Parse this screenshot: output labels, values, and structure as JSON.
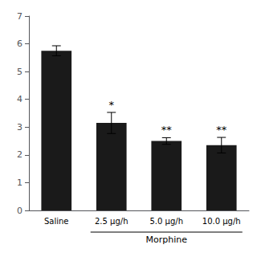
{
  "chart_data": {
    "type": "bar",
    "categories": [
      "Saline",
      "2.5 μg/h",
      "5.0 μg/h",
      "10.0 μg/h"
    ],
    "values": [
      5.75,
      3.15,
      2.5,
      2.35
    ],
    "errors": [
      0.18,
      0.38,
      0.12,
      0.28
    ],
    "annotations": [
      null,
      "*",
      "**",
      "**"
    ],
    "category_group": {
      "label": "Morphine",
      "categories": [
        "2.5 μg/h",
        "5.0 μg/h",
        "10.0 μg/h"
      ]
    },
    "color": "#1a1a1a",
    "ylim": [
      0,
      7
    ],
    "yticks": [
      0,
      1,
      2,
      3,
      4,
      5,
      6,
      7
    ],
    "grid": false
  }
}
